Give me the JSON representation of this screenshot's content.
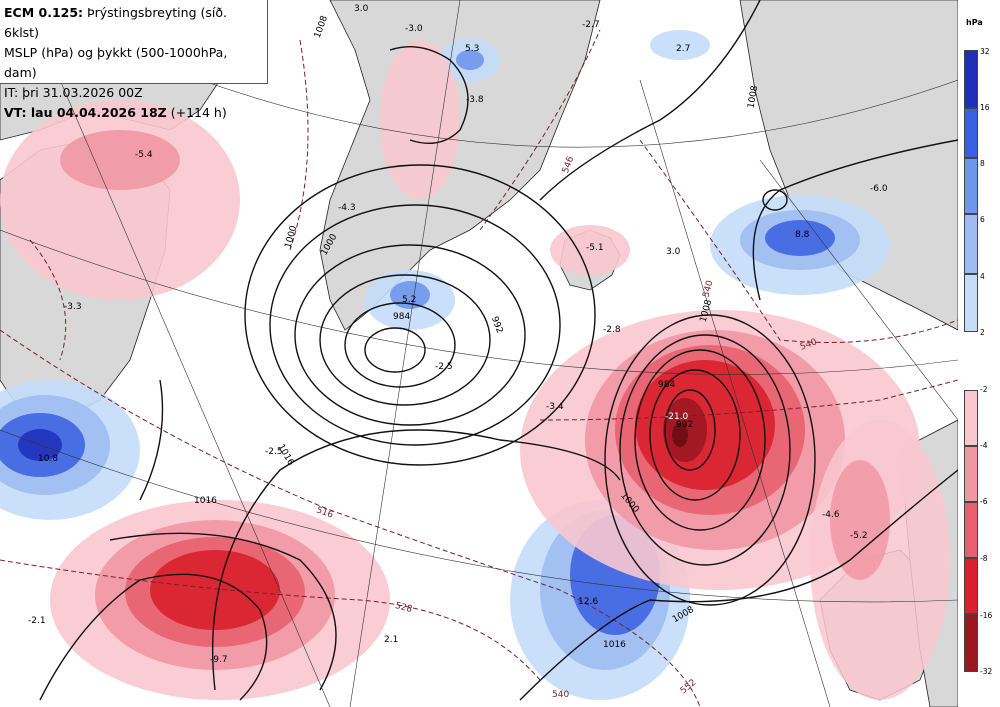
{
  "header": {
    "line1_bold": "ECM 0.125:",
    "line1_rest": "Þrýstingsbreyting (síð. 6klst)",
    "line2": "MSLP (hPa) og þykkt (500-1000hPa, dam)",
    "line3": "IT: þri 31.03.2026 00Z",
    "line4_bold": "VT: lau 04.04.2026 18Z",
    "line4_rest": "(+114 h)"
  },
  "legend": {
    "unit": "hPa",
    "positive": [
      {
        "label": "32",
        "color": "#1d2fb8"
      },
      {
        "label": "16",
        "color": "#3a5fe0"
      },
      {
        "label": "8",
        "color": "#6e96ea"
      },
      {
        "label": "6",
        "color": "#9dbcf1"
      },
      {
        "label": "4",
        "color": "#c4dcf8"
      },
      {
        "label": "2",
        "color": ""
      }
    ],
    "negative": [
      {
        "label": "-2",
        "color": "#f9c7cf"
      },
      {
        "label": "-4",
        "color": "#f197a4"
      },
      {
        "label": "-6",
        "color": "#e8606f"
      },
      {
        "label": "-8",
        "color": "#d9202e"
      },
      {
        "label": "-16",
        "color": "#9c1720"
      },
      {
        "label": "-32",
        "color": ""
      }
    ]
  },
  "colors": {
    "land": "#d8d8d8",
    "sea": "#ffffff",
    "isobar": "#111111",
    "thickness": "#7a1f2b"
  },
  "isobar_labels": [
    {
      "text": "1008"
    },
    {
      "text": "1000"
    },
    {
      "text": "992"
    },
    {
      "text": "984"
    },
    {
      "text": "984"
    },
    {
      "text": "992"
    },
    {
      "text": "1000"
    },
    {
      "text": "1008"
    },
    {
      "text": "1016"
    },
    {
      "text": "1016"
    },
    {
      "text": "1008"
    },
    {
      "text": "1008"
    },
    {
      "text": "1000"
    },
    {
      "text": "1016"
    }
  ],
  "thickness_labels": [
    {
      "text": "546"
    },
    {
      "text": "516"
    },
    {
      "text": "528"
    },
    {
      "text": "540"
    },
    {
      "text": "540"
    },
    {
      "text": "552"
    },
    {
      "text": "540"
    }
  ],
  "change_labels": [
    {
      "text": "-3.0"
    },
    {
      "text": "-2.7"
    },
    {
      "text": "5.3"
    },
    {
      "text": "2.7"
    },
    {
      "text": "-3.8"
    },
    {
      "text": "-5.4"
    },
    {
      "text": "-4.3"
    },
    {
      "text": "-6.0"
    },
    {
      "text": "-5.1"
    },
    {
      "text": "3.0"
    },
    {
      "text": "8.8"
    },
    {
      "text": "-3.3"
    },
    {
      "text": "5.2"
    },
    {
      "text": "-2.5"
    },
    {
      "text": "-2.8"
    },
    {
      "text": "-3.4"
    },
    {
      "text": "-21.0"
    },
    {
      "text": "10.8"
    },
    {
      "text": "-2.5"
    },
    {
      "text": "-4.6"
    },
    {
      "text": "-5.2"
    },
    {
      "text": "-9.7"
    },
    {
      "text": "12.6"
    },
    {
      "text": "-2.1"
    },
    {
      "text": "2.1"
    },
    {
      "text": "3.0"
    }
  ]
}
